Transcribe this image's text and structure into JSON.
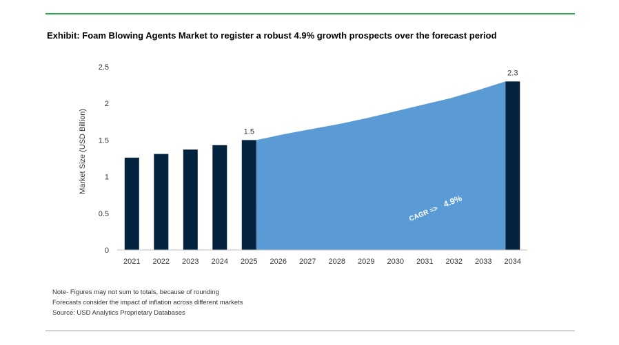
{
  "title": "Exhibit: Foam Blowing Agents Market to register a robust 4.9% growth prospects over the forecast period",
  "notes": [
    "Note- Figures may not sum to totals, because of rounding",
    "Forecasts consider the impact of inflation across different markets",
    "Source: USD Analytics Proprietary Databases"
  ],
  "chart_data": {
    "type": "bar",
    "ylabel": "Market Size (USD Billion)",
    "xlabel": "",
    "ylim": [
      0,
      2.5
    ],
    "yticks": [
      "0",
      "0.5",
      "1",
      "1.5",
      "2",
      "2.5"
    ],
    "categories": [
      "2021",
      "2022",
      "2023",
      "2024",
      "2025",
      "2026",
      "2027",
      "2028",
      "2029",
      "2030",
      "2031",
      "2032",
      "2033",
      "2034"
    ],
    "series": [
      {
        "values": [
          1.26,
          1.31,
          1.37,
          1.43,
          1.5,
          null,
          null,
          null,
          null,
          null,
          null,
          null,
          null,
          2.3
        ]
      }
    ],
    "data_labels": [
      {
        "category": "2025",
        "text": "1.5"
      },
      {
        "category": "2034",
        "text": "2.3"
      }
    ],
    "area": {
      "from": "2025",
      "to": "2034",
      "values": [
        1.5,
        1.58,
        1.65,
        1.72,
        1.8,
        1.89,
        1.98,
        2.07,
        2.18,
        2.3
      ]
    },
    "annotation": {
      "prefix": "CAGR =>",
      "value": "4.9%"
    },
    "colors": {
      "bar": "#04233f",
      "area": "#5b9bd5",
      "annotation": "#ffffff"
    },
    "grid": false
  }
}
